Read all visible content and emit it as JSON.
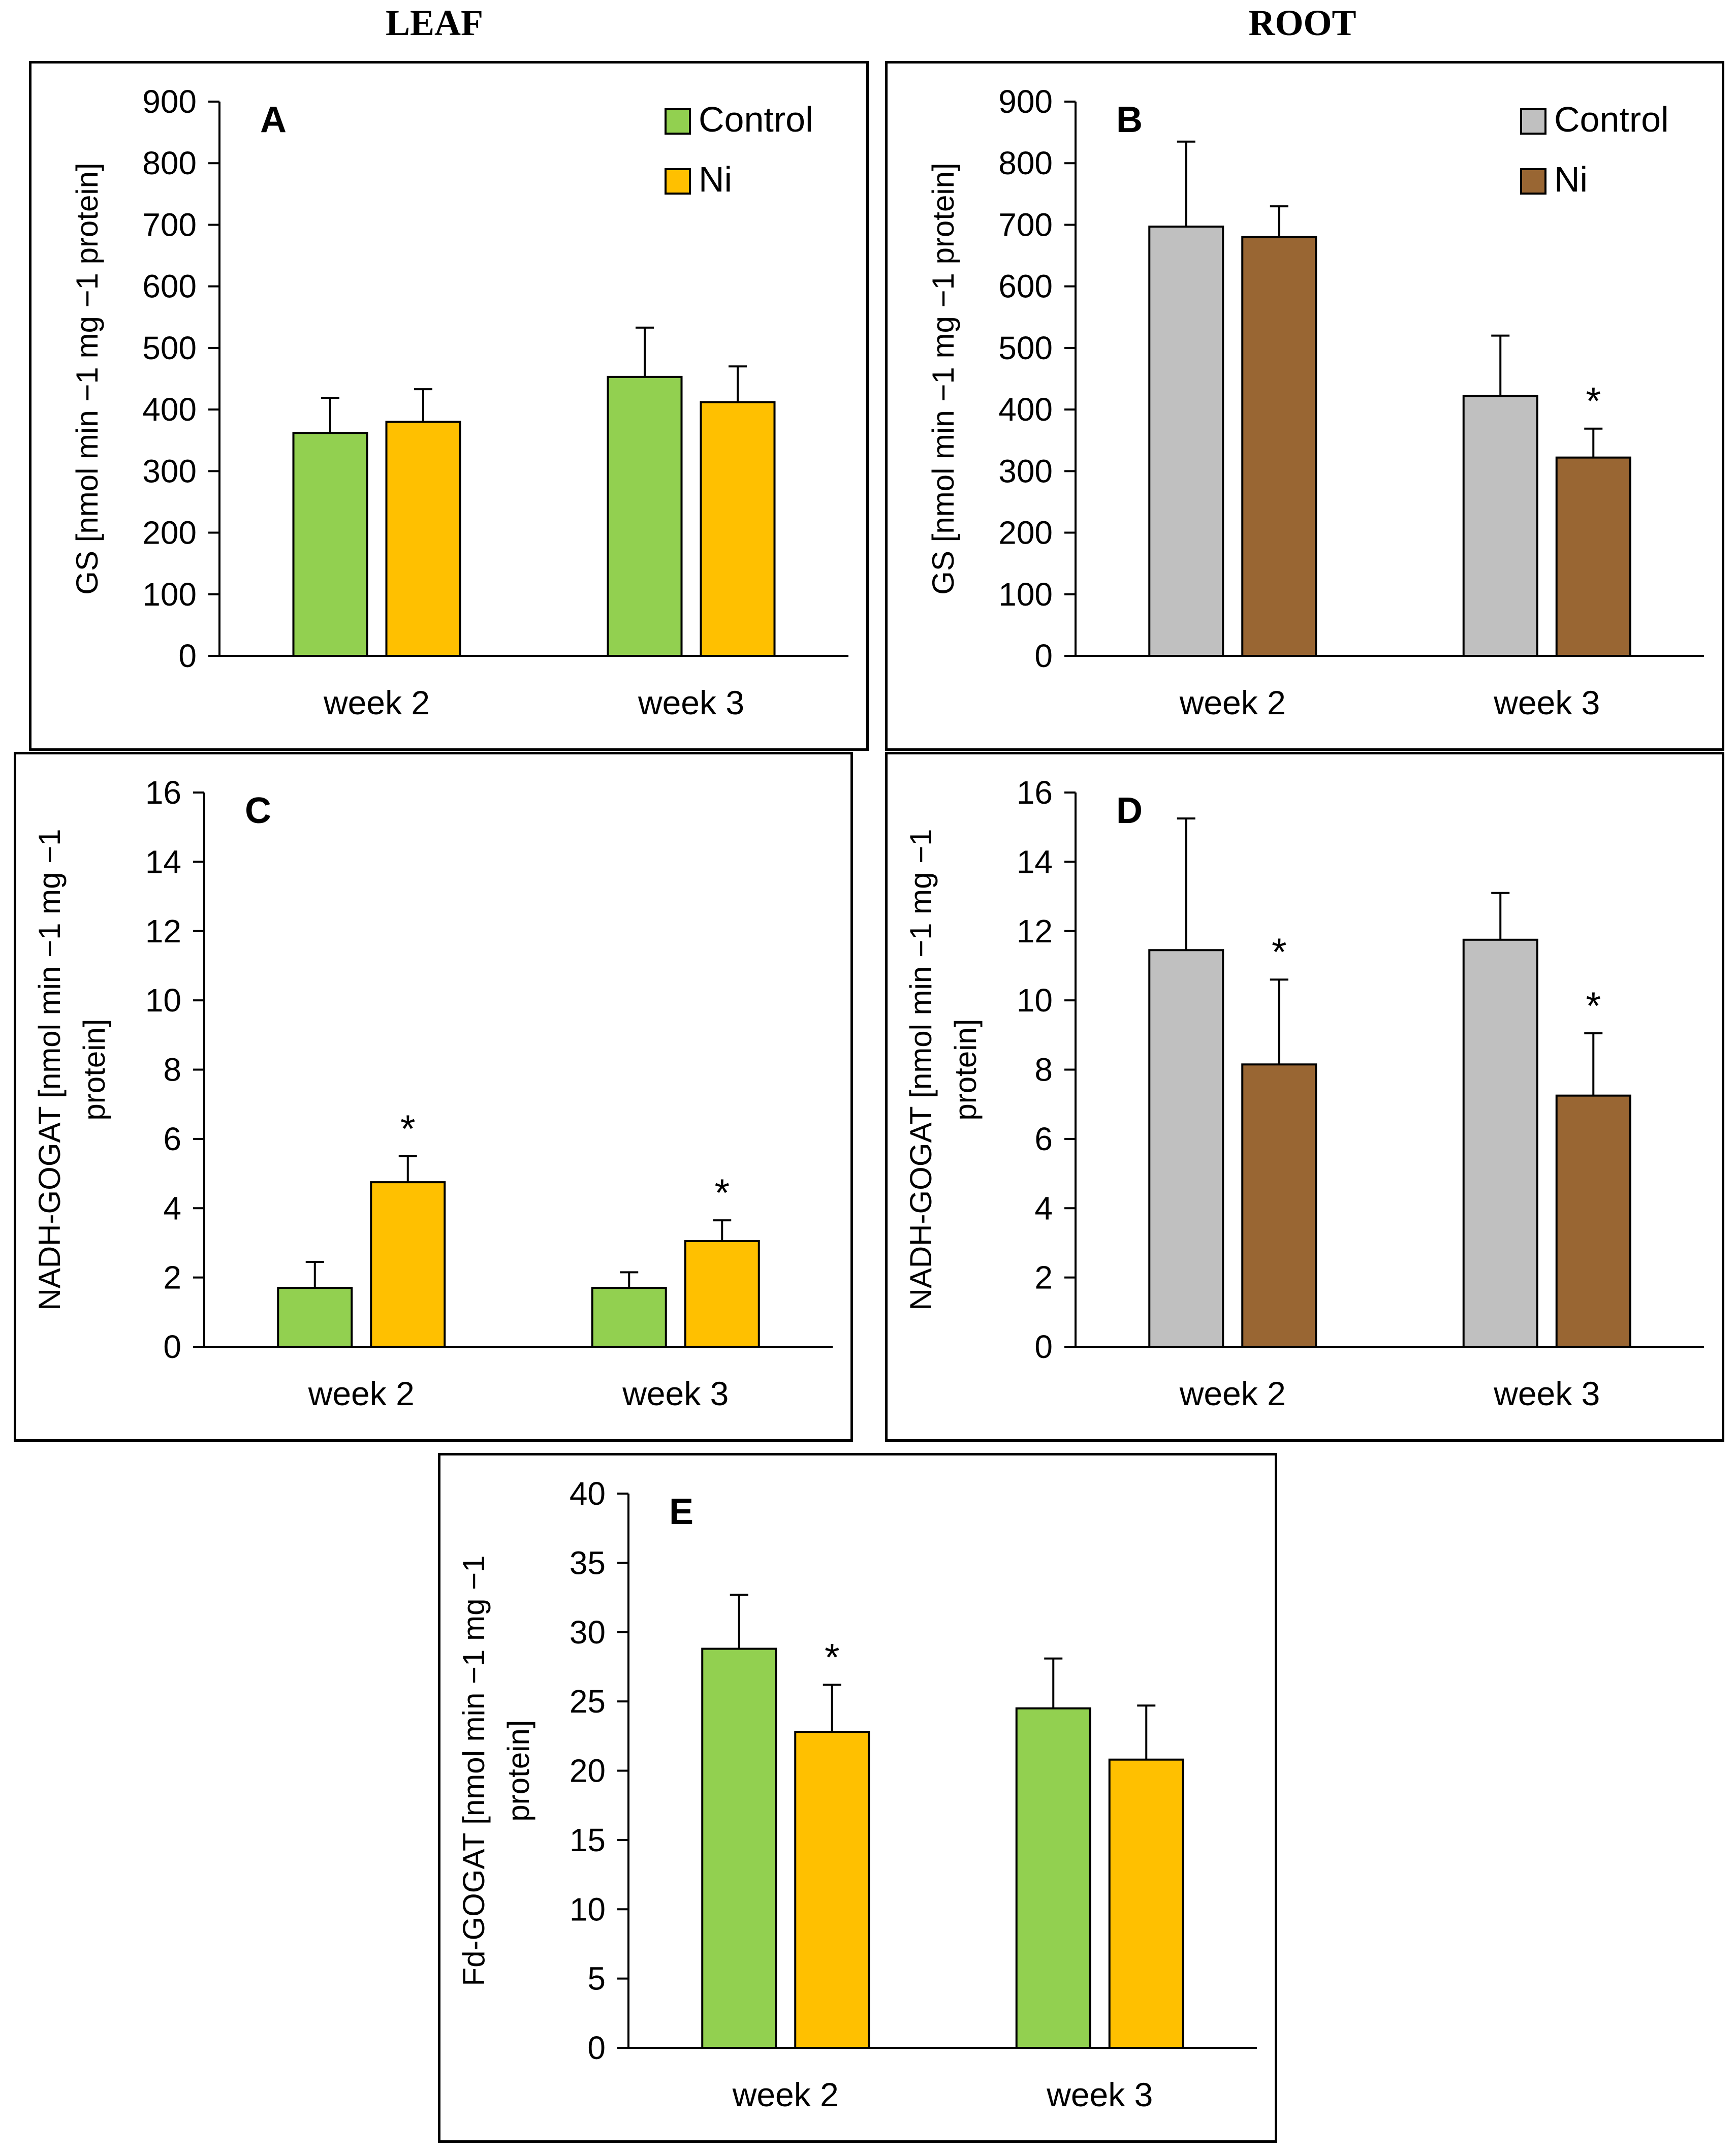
{
  "headers": {
    "leaf": "LEAF",
    "root": "ROOT"
  },
  "colors": {
    "control_leaf": "#92d050",
    "ni_leaf": "#ffc000",
    "control_root": "#c0c0c0",
    "ni_root": "#996633"
  },
  "chart_data": [
    {
      "type": "bar",
      "panel_label": "A",
      "categories": [
        "week 2",
        "week 3"
      ],
      "ylabel": "GS [nmol min −1 mg −1 protein]",
      "ylim": [
        0,
        900
      ],
      "yticks": [
        0,
        100,
        200,
        300,
        400,
        500,
        600,
        700,
        800,
        900
      ],
      "legend_position": "top-right",
      "series": [
        {
          "name": "Control",
          "values": [
            362,
            453
          ],
          "errors": [
            57,
            80
          ],
          "color": "#92d050"
        },
        {
          "name": "Ni",
          "values": [
            380,
            412
          ],
          "errors": [
            53,
            58
          ],
          "color": "#ffc000"
        }
      ],
      "annotations": []
    },
    {
      "type": "bar",
      "panel_label": "B",
      "categories": [
        "week 2",
        "week 3"
      ],
      "ylabel": "GS [nmol min −1 mg −1 protein]",
      "ylim": [
        0,
        900
      ],
      "yticks": [
        0,
        100,
        200,
        300,
        400,
        500,
        600,
        700,
        800,
        900
      ],
      "legend_position": "top-right",
      "series": [
        {
          "name": "Control",
          "values": [
            697,
            422
          ],
          "errors": [
            138,
            98
          ],
          "color": "#c0c0c0"
        },
        {
          "name": "Ni",
          "values": [
            680,
            322
          ],
          "errors": [
            50,
            47
          ],
          "color": "#996633"
        }
      ],
      "annotations": [
        {
          "text": "*",
          "series": 1,
          "category": 1
        }
      ]
    },
    {
      "type": "bar",
      "panel_label": "C",
      "categories": [
        "week 2",
        "week 3"
      ],
      "ylabel": [
        "NADH-GOGAT [nmol min −1 mg −1",
        "protein]"
      ],
      "ylim": [
        0,
        16
      ],
      "yticks": [
        0,
        2,
        4,
        6,
        8,
        10,
        12,
        14,
        16
      ],
      "legend_position": "none",
      "series": [
        {
          "name": "Control",
          "values": [
            1.7,
            1.7
          ],
          "errors": [
            0.75,
            0.45
          ],
          "color": "#92d050"
        },
        {
          "name": "Ni",
          "values": [
            4.75,
            3.05
          ],
          "errors": [
            0.75,
            0.6
          ],
          "color": "#ffc000"
        }
      ],
      "annotations": [
        {
          "text": "*",
          "series": 1,
          "category": 0
        },
        {
          "text": "*",
          "series": 1,
          "category": 1
        }
      ]
    },
    {
      "type": "bar",
      "panel_label": "D",
      "categories": [
        "week 2",
        "week 3"
      ],
      "ylabel": [
        "NADH-GOGAT [nmol min −1 mg −1",
        "protein]"
      ],
      "ylim": [
        0,
        16
      ],
      "yticks": [
        0,
        2,
        4,
        6,
        8,
        10,
        12,
        14,
        16
      ],
      "legend_position": "none",
      "series": [
        {
          "name": "Control",
          "values": [
            11.45,
            11.75
          ],
          "errors": [
            3.8,
            1.35
          ],
          "color": "#c0c0c0"
        },
        {
          "name": "Ni",
          "values": [
            8.15,
            7.25
          ],
          "errors": [
            2.45,
            1.8
          ],
          "color": "#996633"
        }
      ],
      "annotations": [
        {
          "text": "*",
          "series": 1,
          "category": 0
        },
        {
          "text": "*",
          "series": 1,
          "category": 1
        }
      ]
    },
    {
      "type": "bar",
      "panel_label": "E",
      "categories": [
        "week 2",
        "week 3"
      ],
      "ylabel": [
        "Fd-GOGAT [nmol min −1 mg −1",
        "protein]"
      ],
      "ylim": [
        0,
        40
      ],
      "yticks": [
        0,
        5,
        10,
        15,
        20,
        25,
        30,
        35,
        40
      ],
      "legend_position": "none",
      "series": [
        {
          "name": "Control",
          "values": [
            28.8,
            24.5
          ],
          "errors": [
            3.9,
            3.6
          ],
          "color": "#92d050"
        },
        {
          "name": "Ni",
          "values": [
            22.8,
            20.8
          ],
          "errors": [
            3.4,
            3.9
          ],
          "color": "#ffc000"
        }
      ],
      "annotations": [
        {
          "text": "*",
          "series": 1,
          "category": 0
        }
      ]
    }
  ]
}
